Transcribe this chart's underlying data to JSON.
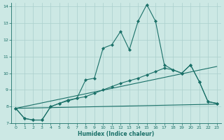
{
  "xlabel": "Humidex (Indice chaleur)",
  "background_color": "#cce8e4",
  "grid_color": "#aacfcc",
  "line_color": "#1a7068",
  "xlim": [
    -0.5,
    23.5
  ],
  "ylim": [
    7,
    14.2
  ],
  "yticks": [
    7,
    8,
    9,
    10,
    11,
    12,
    13,
    14
  ],
  "xticks": [
    0,
    1,
    2,
    3,
    4,
    5,
    6,
    7,
    8,
    9,
    10,
    11,
    12,
    13,
    14,
    15,
    16,
    17,
    18,
    19,
    20,
    21,
    22,
    23
  ],
  "series": [
    {
      "x": [
        0,
        1,
        2,
        3,
        4,
        5,
        6,
        7,
        8,
        9,
        10,
        11,
        12,
        13,
        14,
        15,
        16,
        17,
        18,
        19,
        20,
        21,
        22,
        23
      ],
      "y": [
        7.9,
        7.3,
        7.2,
        7.2,
        8.0,
        8.2,
        8.4,
        8.5,
        9.6,
        9.7,
        11.5,
        11.7,
        12.5,
        11.4,
        13.1,
        14.1,
        13.1,
        10.5,
        10.2,
        10.0,
        10.5,
        9.5,
        8.3,
        8.2
      ],
      "has_markers": true
    },
    {
      "x": [
        0,
        1,
        2,
        3,
        4,
        5,
        6,
        7,
        8,
        9,
        10,
        11,
        12,
        13,
        14,
        15,
        16,
        17,
        18,
        19,
        20,
        21,
        22,
        23
      ],
      "y": [
        7.9,
        7.3,
        7.2,
        7.2,
        8.0,
        8.2,
        8.35,
        8.5,
        8.6,
        8.8,
        9.0,
        9.2,
        9.4,
        9.55,
        9.7,
        9.9,
        10.1,
        10.3,
        10.2,
        10.0,
        10.5,
        9.5,
        8.3,
        8.2
      ],
      "has_markers": true
    },
    {
      "x": [
        0,
        23
      ],
      "y": [
        7.9,
        10.4
      ],
      "has_markers": false
    },
    {
      "x": [
        0,
        23
      ],
      "y": [
        7.9,
        8.15
      ],
      "has_markers": false
    }
  ]
}
